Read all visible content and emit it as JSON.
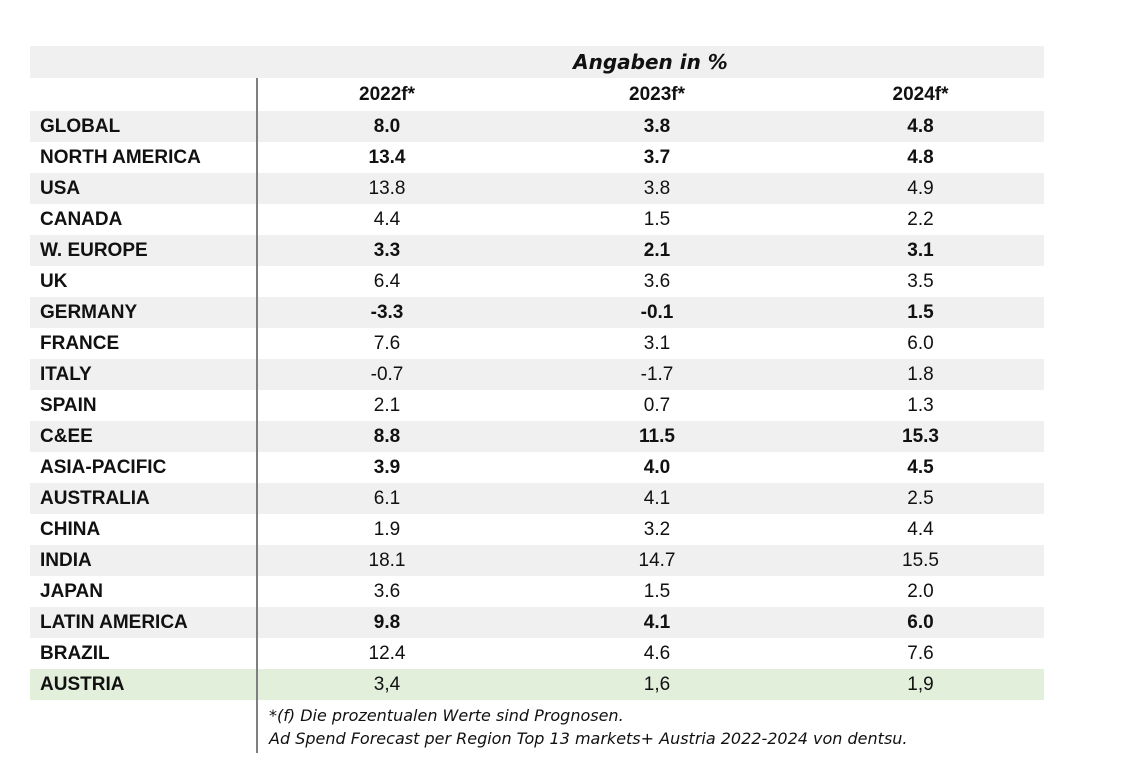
{
  "chart_data": {
    "type": "table",
    "title": "Angaben in %",
    "columns": [
      "2022f*",
      "2023f*",
      "2024f*"
    ],
    "rows": [
      {
        "region": "GLOBAL",
        "values": [
          "8.0",
          "3.8",
          "4.8"
        ],
        "bold": true,
        "band": "gray"
      },
      {
        "region": "NORTH AMERICA",
        "values": [
          "13.4",
          "3.7",
          "4.8"
        ],
        "bold": true,
        "band": "white"
      },
      {
        "region": "USA",
        "values": [
          "13.8",
          "3.8",
          "4.9"
        ],
        "bold": false,
        "band": "gray"
      },
      {
        "region": "CANADA",
        "values": [
          "4.4",
          "1.5",
          "2.2"
        ],
        "bold": false,
        "band": "white"
      },
      {
        "region": "W. EUROPE",
        "values": [
          "3.3",
          "2.1",
          "3.1"
        ],
        "bold": true,
        "band": "gray"
      },
      {
        "region": "UK",
        "values": [
          "6.4",
          "3.6",
          "3.5"
        ],
        "bold": false,
        "band": "white"
      },
      {
        "region": "GERMANY",
        "values": [
          "-3.3",
          "-0.1",
          "1.5"
        ],
        "bold": true,
        "band": "gray"
      },
      {
        "region": "FRANCE",
        "values": [
          "7.6",
          "3.1",
          "6.0"
        ],
        "bold": false,
        "band": "white"
      },
      {
        "region": "ITALY",
        "values": [
          "-0.7",
          "-1.7",
          "1.8"
        ],
        "bold": false,
        "band": "gray"
      },
      {
        "region": "SPAIN",
        "values": [
          "2.1",
          "0.7",
          "1.3"
        ],
        "bold": false,
        "band": "white"
      },
      {
        "region": "C&EE",
        "values": [
          "8.8",
          "11.5",
          "15.3"
        ],
        "bold": true,
        "band": "gray"
      },
      {
        "region": "ASIA-PACIFIC",
        "values": [
          "3.9",
          "4.0",
          "4.5"
        ],
        "bold": true,
        "band": "white"
      },
      {
        "region": "AUSTRALIA",
        "values": [
          "6.1",
          "4.1",
          "2.5"
        ],
        "bold": false,
        "band": "gray"
      },
      {
        "region": "CHINA",
        "values": [
          "1.9",
          "3.2",
          "4.4"
        ],
        "bold": false,
        "band": "white"
      },
      {
        "region": "INDIA",
        "values": [
          "18.1",
          "14.7",
          "15.5"
        ],
        "bold": false,
        "band": "gray"
      },
      {
        "region": "JAPAN",
        "values": [
          "3.6",
          "1.5",
          "2.0"
        ],
        "bold": false,
        "band": "white"
      },
      {
        "region": "LATIN AMERICA",
        "values": [
          "9.8",
          "4.1",
          "6.0"
        ],
        "bold": true,
        "band": "gray"
      },
      {
        "region": "BRAZIL",
        "values": [
          "12.4",
          "4.6",
          "7.6"
        ],
        "bold": false,
        "band": "white"
      },
      {
        "region": "AUSTRIA",
        "values": [
          "3,4",
          "1,6",
          "1,9"
        ],
        "bold": false,
        "band": "green"
      }
    ],
    "footnotes": [
      "*(f) Die prozentualen Werte sind Prognosen.",
      "Ad Spend Forecast per Region Top 13 markets+ Austria 2022-2024 von dentsu."
    ]
  },
  "colors": {
    "band_gray": "#f0f0f0",
    "band_green": "#e2efda",
    "divider": "#7f7f7f",
    "text": "#111111"
  }
}
